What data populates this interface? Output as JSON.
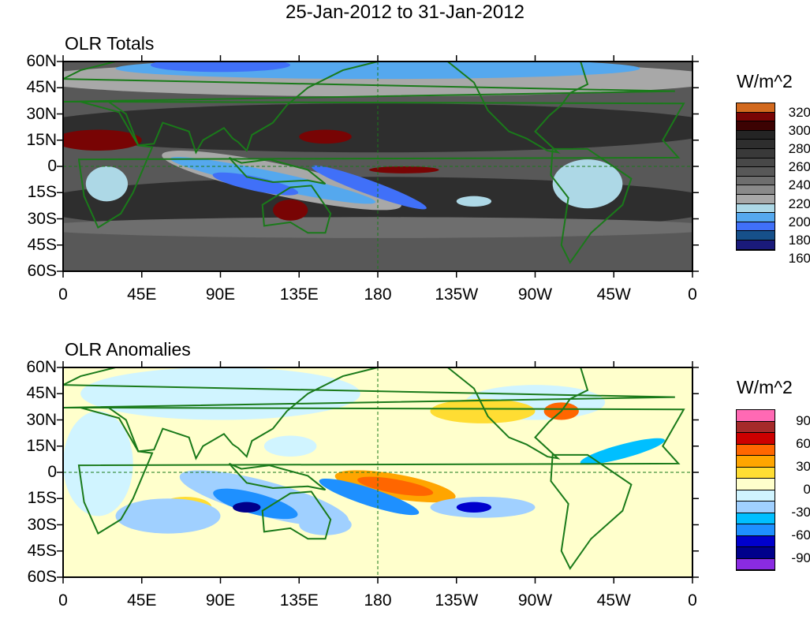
{
  "title": "25-Jan-2012 to 31-Jan-2012",
  "panels": [
    {
      "title": "OLR Totals",
      "units": "W/m^2",
      "colors": [
        "#d2691e",
        "#e8371a",
        "#a40a0a",
        "#780404",
        "#3c0202",
        "#242424",
        "#2e2e2e",
        "#393939",
        "#484848",
        "#585858",
        "#6e6e6e",
        "#8a8a8a",
        "#a8a8a8",
        "#add8e6",
        "#55a8ee",
        "#4070f8",
        "#16508a",
        "#1a1a7a"
      ],
      "labels": [
        "320",
        "300",
        "280",
        "260",
        "240",
        "220",
        "200",
        "180",
        "160"
      ]
    },
    {
      "title": "OLR Anomalies",
      "units": "W/m^2",
      "colors": [
        "#ff69b4",
        "#a52a2a",
        "#cc0000",
        "#ff6600",
        "#ffa500",
        "#ffdd33",
        "#ffffcc",
        "#d0f4ff",
        "#a0d0ff",
        "#00bfff",
        "#1e90ff",
        "#0000cd",
        "#00008b",
        "#8a2be2"
      ],
      "labels": [
        "90",
        "60",
        "30",
        "0",
        "-30",
        "-60",
        "-90"
      ]
    }
  ],
  "yticks": [
    "60N",
    "45N",
    "30N",
    "15N",
    "0",
    "15S",
    "30S",
    "45S",
    "60S"
  ],
  "xticks": [
    "0",
    "45E",
    "90E",
    "135E",
    "180",
    "135W",
    "90W",
    "45W",
    "0"
  ]
}
